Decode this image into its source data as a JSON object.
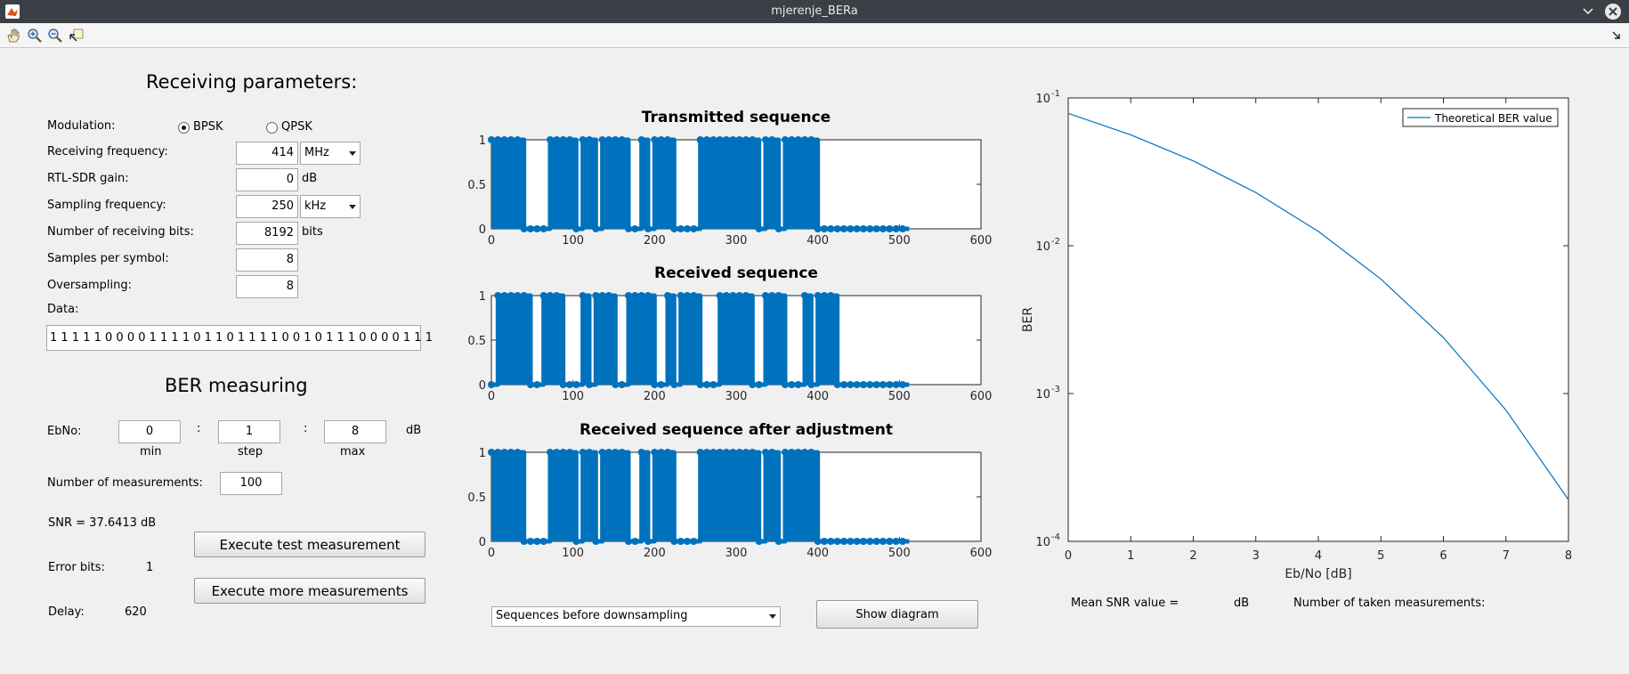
{
  "window": {
    "title": "mjerenje_BERa"
  },
  "toolbar": {
    "icons": [
      "hand-icon",
      "zoom-in-icon",
      "zoom-out-icon",
      "data-cursor-icon"
    ]
  },
  "receiving": {
    "heading": "Receiving parameters:",
    "modulation_label": "Modulation:",
    "bpsk_label": "BPSK",
    "qpsk_label": "QPSK",
    "selected_modulation": "BPSK",
    "freq_label": "Receiving frequency:",
    "freq_value": "414",
    "freq_unit": "MHz",
    "gain_label": "RTL-SDR gain:",
    "gain_value": "0",
    "gain_unit": "dB",
    "sampling_label": "Sampling frequency:",
    "sampling_value": "250",
    "sampling_unit": "kHz",
    "bits_label": "Number of receiving bits:",
    "bits_value": "8192",
    "bits_unit": "bits",
    "sps_label": "Samples per symbol:",
    "sps_value": "8",
    "oversampling_label": "Oversampling:",
    "oversampling_value": "8",
    "data_label": "Data:",
    "data_value": "1 1 1 1 1 0 0 0 0 1 1 1 1 0 1 1 0 1 1 1 1 0 0 1 0 1 1 1 0 0 0 0 1 1 1"
  },
  "ber": {
    "heading": "BER measuring",
    "ebno_label": "EbNo:",
    "min_value": "0",
    "step_value": "1",
    "max_value": "8",
    "colon1": ":",
    "colon2": ":",
    "db_unit": "dB",
    "min_label": "min",
    "step_label": "step",
    "max_label": "max",
    "meas_label": "Number of measurements:",
    "meas_value": "100",
    "snr_text": "SNR =  37.6413  dB",
    "test_button": "Execute test measurement",
    "more_button": "Execute more measurements",
    "error_bits_label": "Error bits:",
    "error_bits_value": "1",
    "delay_label": "Delay:",
    "delay_value": "620"
  },
  "sequence_plots": {
    "titles": [
      "Transmitted sequence",
      "Received sequence",
      "Received sequence after adjustment"
    ],
    "x_ticks": [
      "0",
      "100",
      "200",
      "300",
      "400",
      "500",
      "600"
    ],
    "y_ticks": [
      "0",
      "0.5",
      "1"
    ],
    "dropdown_value": "Sequences before downsampling",
    "show_button": "Show diagram",
    "color": "#0072bd"
  },
  "ber_plot": {
    "ylabel": "BER",
    "xlabel": "Eb/No [dB]",
    "x_ticks": [
      "0",
      "1",
      "2",
      "3",
      "4",
      "5",
      "6",
      "7",
      "8"
    ],
    "y_ticks": [
      {
        "base": "10",
        "exp": "-1"
      },
      {
        "base": "10",
        "exp": "-2"
      },
      {
        "base": "10",
        "exp": "-3"
      },
      {
        "base": "10",
        "exp": "-4"
      }
    ],
    "legend": "Theoretical BER value",
    "mean_snr_label": "Mean SNR value =",
    "mean_snr_unit": "dB",
    "taken_label": "Number of taken measurements:",
    "line_color": "#0072bd"
  },
  "chart_data": [
    {
      "type": "line",
      "title": "Transmitted sequence",
      "xlim": [
        0,
        600
      ],
      "ylim": [
        0,
        1
      ],
      "series": [
        {
          "values": [
            1,
            1,
            1,
            1,
            1,
            0,
            0,
            0,
            0,
            1,
            1,
            1,
            1,
            0,
            1,
            1,
            0,
            1,
            1,
            1,
            1,
            0,
            0,
            1,
            0,
            1,
            1,
            1,
            0,
            0,
            0,
            0,
            1,
            1,
            1,
            1,
            1,
            1,
            1,
            1,
            1,
            0,
            1,
            1,
            0,
            1,
            1,
            1,
            1,
            1,
            0,
            0,
            0,
            0,
            0,
            0,
            0,
            0,
            0,
            0,
            0,
            0,
            0,
            0
          ]
        }
      ],
      "x_step": 8
    },
    {
      "type": "line",
      "title": "Received sequence",
      "xlim": [
        0,
        600
      ],
      "ylim": [
        0,
        1
      ],
      "series": [
        {
          "values": [
            0,
            1,
            1,
            1,
            1,
            1,
            0,
            0,
            1,
            1,
            1,
            0,
            0,
            0,
            1,
            0,
            1,
            1,
            1,
            0,
            0,
            1,
            1,
            1,
            1,
            0,
            0,
            1,
            0,
            1,
            1,
            1,
            0,
            0,
            0,
            1,
            1,
            1,
            1,
            1,
            0,
            0,
            1,
            1,
            1,
            0,
            0,
            0,
            1,
            0,
            1,
            1,
            1,
            0,
            0,
            0,
            0,
            0,
            0,
            0,
            0,
            0,
            0,
            0
          ]
        }
      ],
      "x_step": 8
    },
    {
      "type": "line",
      "title": "Received sequence after adjustment",
      "xlim": [
        0,
        600
      ],
      "ylim": [
        0,
        1
      ],
      "series": [
        {
          "values": [
            1,
            1,
            1,
            1,
            1,
            0,
            0,
            0,
            0,
            1,
            1,
            1,
            1,
            0,
            1,
            1,
            0,
            1,
            1,
            1,
            1,
            0,
            0,
            1,
            0,
            1,
            1,
            1,
            0,
            0,
            0,
            0,
            1,
            1,
            1,
            1,
            1,
            1,
            1,
            1,
            1,
            0,
            1,
            1,
            0,
            1,
            1,
            1,
            1,
            1,
            0,
            0,
            0,
            0,
            0,
            0,
            0,
            0,
            0,
            0,
            0,
            0,
            0,
            0
          ]
        }
      ],
      "x_step": 8
    },
    {
      "type": "line",
      "xlabel": "Eb/No [dB]",
      "ylabel": "BER",
      "log_y": true,
      "xlim": [
        0,
        8
      ],
      "ylim": [
        0.0001,
        0.1
      ],
      "series": [
        {
          "name": "Theoretical BER value",
          "x": [
            0,
            1,
            2,
            3,
            4,
            5,
            6,
            7,
            8
          ],
          "values": [
            0.0786,
            0.0563,
            0.0375,
            0.0229,
            0.0125,
            0.00595,
            0.00239,
            0.000773,
            0.000191
          ]
        }
      ]
    }
  ]
}
